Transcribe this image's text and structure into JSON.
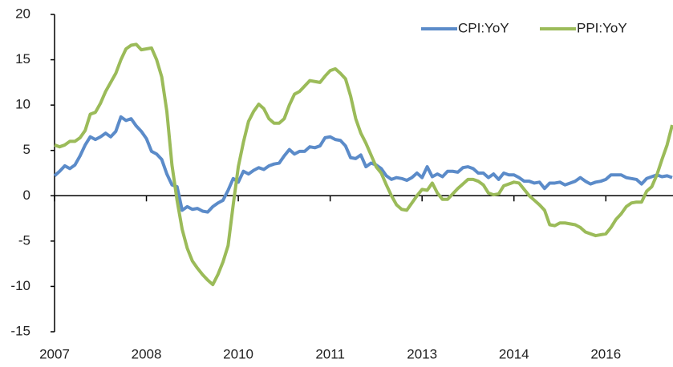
{
  "chart_data": {
    "type": "line",
    "categories": [
      "2007",
      null,
      null,
      null,
      null,
      null,
      null,
      null,
      null,
      null,
      null,
      null,
      null,
      null,
      null,
      null,
      null,
      null,
      "2008",
      null,
      null,
      null,
      null,
      null,
      null,
      null,
      null,
      null,
      null,
      null,
      null,
      null,
      null,
      null,
      null,
      null,
      "2010",
      null,
      null,
      null,
      null,
      null,
      null,
      null,
      null,
      null,
      null,
      null,
      null,
      null,
      null,
      null,
      null,
      null,
      "2011",
      null,
      null,
      null,
      null,
      null,
      null,
      null,
      null,
      null,
      null,
      null,
      null,
      null,
      null,
      null,
      null,
      null,
      "2013",
      null,
      null,
      null,
      null,
      null,
      null,
      null,
      null,
      null,
      null,
      null,
      null,
      null,
      null,
      null,
      null,
      null,
      "2014",
      null,
      null,
      null,
      null,
      null,
      null,
      null,
      null,
      null,
      null,
      null,
      null,
      null,
      null,
      null,
      null,
      null,
      "2016",
      null,
      null,
      null,
      null,
      null,
      null,
      null,
      null,
      null,
      null,
      null,
      null,
      null
    ],
    "series": [
      {
        "name": "CPI:YoY",
        "color": "#5b8bc9",
        "values": [
          2.2,
          2.7,
          3.3,
          3.0,
          3.4,
          4.4,
          5.6,
          6.5,
          6.2,
          6.5,
          6.9,
          6.5,
          7.1,
          8.7,
          8.3,
          8.5,
          7.7,
          7.1,
          6.3,
          4.9,
          4.6,
          4.0,
          2.4,
          1.2,
          1.0,
          -1.6,
          -1.2,
          -1.5,
          -1.4,
          -1.7,
          -1.8,
          -1.2,
          -0.8,
          -0.5,
          0.6,
          1.9,
          1.5,
          2.7,
          2.4,
          2.8,
          3.1,
          2.9,
          3.3,
          3.5,
          3.6,
          4.4,
          5.1,
          4.6,
          4.9,
          4.9,
          5.4,
          5.3,
          5.5,
          6.4,
          6.5,
          6.2,
          6.1,
          5.5,
          4.2,
          4.1,
          4.5,
          3.2,
          3.6,
          3.4,
          3.0,
          2.2,
          1.8,
          2.0,
          1.9,
          1.7,
          2.0,
          2.5,
          2.0,
          3.2,
          2.1,
          2.4,
          2.1,
          2.7,
          2.7,
          2.6,
          3.1,
          3.2,
          3.0,
          2.5,
          2.5,
          2.0,
          2.4,
          1.8,
          2.5,
          2.3,
          2.3,
          2.0,
          1.6,
          1.6,
          1.4,
          1.5,
          0.8,
          1.4,
          1.4,
          1.5,
          1.2,
          1.4,
          1.6,
          2.0,
          1.6,
          1.3,
          1.5,
          1.6,
          1.8,
          2.3,
          2.3,
          2.3,
          2.0,
          1.9,
          1.8,
          1.3,
          1.9,
          2.1,
          2.3,
          2.1,
          2.2,
          2.0
        ]
      },
      {
        "name": "PPI:YoY",
        "color": "#9bbb59",
        "values": [
          5.6,
          5.4,
          5.6,
          6.0,
          6.0,
          6.4,
          7.2,
          9.0,
          9.2,
          10.2,
          11.5,
          12.5,
          13.5,
          15.0,
          16.2,
          16.6,
          16.7,
          16.1,
          16.2,
          16.3,
          15.0,
          13.1,
          9.3,
          3.4,
          -0.5,
          -3.7,
          -5.8,
          -7.2,
          -8.0,
          -8.7,
          -9.3,
          -9.8,
          -8.7,
          -7.3,
          -5.5,
          -1.0,
          3.2,
          5.9,
          8.2,
          9.3,
          10.1,
          9.6,
          8.5,
          8.0,
          8.0,
          8.5,
          10.0,
          11.2,
          11.5,
          12.1,
          12.7,
          12.6,
          12.5,
          13.2,
          13.8,
          14.0,
          13.5,
          12.9,
          11.0,
          8.5,
          6.9,
          5.8,
          4.5,
          3.2,
          2.5,
          1.2,
          0.0,
          -1.0,
          -1.5,
          -1.6,
          -0.8,
          0.0,
          0.7,
          0.6,
          1.4,
          0.3,
          -0.4,
          -0.4,
          0.2,
          0.8,
          1.3,
          1.8,
          1.8,
          1.6,
          1.2,
          0.3,
          0.1,
          0.2,
          1.1,
          1.3,
          1.5,
          1.4,
          0.7,
          0.0,
          -0.5,
          -1.0,
          -1.6,
          -3.2,
          -3.3,
          -3.0,
          -3.0,
          -3.1,
          -3.2,
          -3.5,
          -4.0,
          -4.2,
          -4.4,
          -4.3,
          -4.2,
          -3.5,
          -2.6,
          -2.0,
          -1.2,
          -0.8,
          -0.7,
          -0.7,
          0.5,
          1.0,
          2.3,
          4.0,
          5.6,
          7.8
        ]
      }
    ],
    "ylim": [
      -15,
      20
    ],
    "yticks": [
      -15,
      -10,
      -5,
      0,
      5,
      10,
      15,
      20
    ],
    "legend": "top-right"
  }
}
